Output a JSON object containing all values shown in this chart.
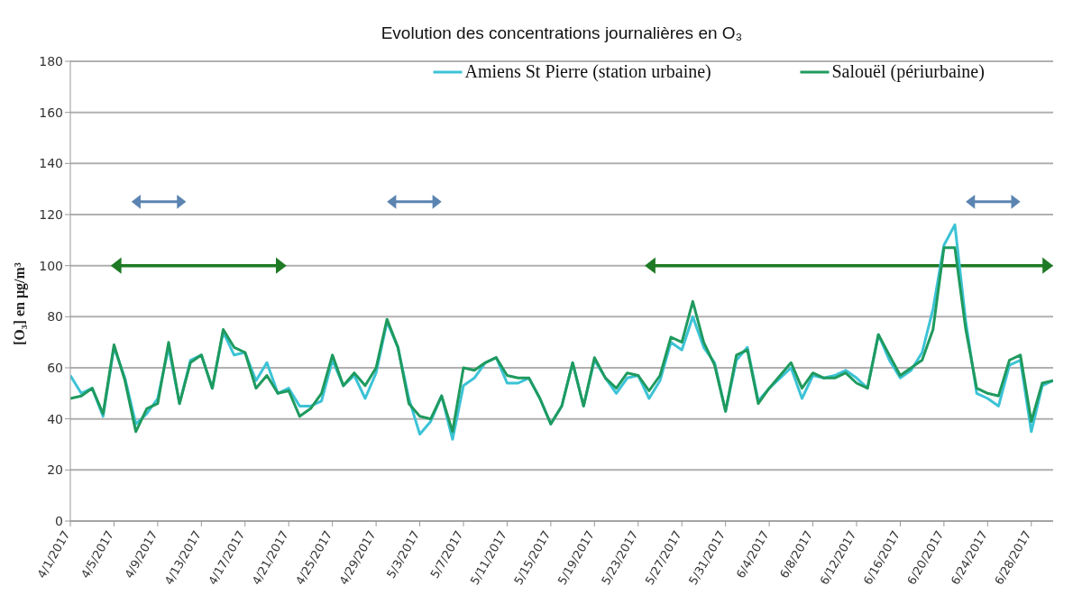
{
  "chart_data": {
    "type": "line",
    "title": "Evolution des concentrations journalières en O₃",
    "ylabel": "[O₃] en µg/m³",
    "x": [
      "2017-04-01",
      "2017-04-02",
      "2017-04-03",
      "2017-04-04",
      "2017-04-05",
      "2017-04-06",
      "2017-04-07",
      "2017-04-08",
      "2017-04-09",
      "2017-04-10",
      "2017-04-11",
      "2017-04-12",
      "2017-04-13",
      "2017-04-14",
      "2017-04-15",
      "2017-04-16",
      "2017-04-17",
      "2017-04-18",
      "2017-04-19",
      "2017-04-20",
      "2017-04-21",
      "2017-04-22",
      "2017-04-23",
      "2017-04-24",
      "2017-04-25",
      "2017-04-26",
      "2017-04-27",
      "2017-04-28",
      "2017-04-29",
      "2017-04-30",
      "2017-05-01",
      "2017-05-02",
      "2017-05-03",
      "2017-05-04",
      "2017-05-05",
      "2017-05-06",
      "2017-05-07",
      "2017-05-08",
      "2017-05-09",
      "2017-05-10",
      "2017-05-11",
      "2017-05-12",
      "2017-05-13",
      "2017-05-14",
      "2017-05-15",
      "2017-05-16",
      "2017-05-17",
      "2017-05-18",
      "2017-05-19",
      "2017-05-20",
      "2017-05-21",
      "2017-05-22",
      "2017-05-23",
      "2017-05-24",
      "2017-05-25",
      "2017-05-26",
      "2017-05-27",
      "2017-05-28",
      "2017-05-29",
      "2017-05-30",
      "2017-05-31",
      "2017-06-01",
      "2017-06-02",
      "2017-06-03",
      "2017-06-04",
      "2017-06-05",
      "2017-06-06",
      "2017-06-07",
      "2017-06-08",
      "2017-06-09",
      "2017-06-10",
      "2017-06-11",
      "2017-06-12",
      "2017-06-13",
      "2017-06-14",
      "2017-06-15",
      "2017-06-16",
      "2017-06-17",
      "2017-06-18",
      "2017-06-19",
      "2017-06-20",
      "2017-06-21",
      "2017-06-22",
      "2017-06-23",
      "2017-06-24",
      "2017-06-25",
      "2017-06-26",
      "2017-06-27",
      "2017-06-28",
      "2017-06-29",
      "2017-06-30"
    ],
    "series": [
      {
        "name": "Amiens St Pierre (station urbaine)",
        "color": "#3cc3d6",
        "values": [
          57,
          50,
          52,
          41,
          68,
          56,
          38,
          42,
          48,
          68,
          46,
          63,
          65,
          52,
          74,
          65,
          66,
          55,
          62,
          50,
          52,
          45,
          45,
          47,
          63,
          53,
          57,
          48,
          58,
          78,
          68,
          48,
          34,
          39,
          49,
          32,
          53,
          56,
          62,
          64,
          54,
          54,
          56,
          48,
          38,
          45,
          62,
          45,
          63,
          56,
          50,
          56,
          57,
          48,
          55,
          70,
          67,
          80,
          68,
          62,
          43,
          63,
          68,
          47,
          52,
          56,
          60,
          48,
          57,
          56,
          57,
          59,
          56,
          52,
          73,
          63,
          56,
          59,
          66,
          83,
          108,
          116,
          78,
          50,
          48,
          45,
          61,
          63,
          35,
          53,
          55
        ]
      },
      {
        "name": "Salouël (périurbaine)",
        "color": "#1f9a5e",
        "values": [
          48,
          49,
          52,
          42,
          69,
          55,
          35,
          44,
          46,
          70,
          46,
          62,
          65,
          52,
          75,
          68,
          66,
          52,
          57,
          50,
          51,
          41,
          44,
          50,
          65,
          53,
          58,
          53,
          60,
          79,
          68,
          46,
          41,
          40,
          49,
          35,
          60,
          59,
          62,
          64,
          57,
          56,
          56,
          48,
          38,
          45,
          62,
          45,
          64,
          56,
          52,
          58,
          57,
          51,
          57,
          72,
          70,
          86,
          70,
          61,
          43,
          65,
          67,
          46,
          52,
          57,
          62,
          52,
          58,
          56,
          56,
          58,
          54,
          52,
          73,
          65,
          57,
          60,
          63,
          75,
          107,
          107,
          75,
          52,
          50,
          49,
          63,
          65,
          39,
          54,
          55
        ]
      }
    ],
    "xlim": [
      "2017-04-01",
      "2017-06-30"
    ],
    "xticks": [
      {
        "value": "2017-04-01",
        "label": "4/1/2017"
      },
      {
        "value": "2017-04-05",
        "label": "4/5/2017"
      },
      {
        "value": "2017-04-09",
        "label": "4/9/2017"
      },
      {
        "value": "2017-04-13",
        "label": "4/13/2017"
      },
      {
        "value": "2017-04-17",
        "label": "4/17/2017"
      },
      {
        "value": "2017-04-21",
        "label": "4/21/2017"
      },
      {
        "value": "2017-04-25",
        "label": "4/25/2017"
      },
      {
        "value": "2017-04-29",
        "label": "4/29/2017"
      },
      {
        "value": "2017-05-03",
        "label": "5/3/2017"
      },
      {
        "value": "2017-05-07",
        "label": "5/7/2017"
      },
      {
        "value": "2017-05-11",
        "label": "5/11/2017"
      },
      {
        "value": "2017-05-15",
        "label": "5/15/2017"
      },
      {
        "value": "2017-05-19",
        "label": "5/19/2017"
      },
      {
        "value": "2017-05-23",
        "label": "5/23/2017"
      },
      {
        "value": "2017-05-27",
        "label": "5/27/2017"
      },
      {
        "value": "2017-05-31",
        "label": "5/31/2017"
      },
      {
        "value": "2017-06-04",
        "label": "6/4/2017"
      },
      {
        "value": "2017-06-08",
        "label": "6/8/2017"
      },
      {
        "value": "2017-06-12",
        "label": "6/12/2017"
      },
      {
        "value": "2017-06-16",
        "label": "6/16/2017"
      },
      {
        "value": "2017-06-20",
        "label": "6/20/2017"
      },
      {
        "value": "2017-06-24",
        "label": "6/24/2017"
      },
      {
        "value": "2017-06-28",
        "label": "6/28/2017"
      }
    ],
    "ylim": [
      0,
      180
    ],
    "yticks": [
      0,
      20,
      40,
      60,
      80,
      100,
      120,
      140,
      160,
      180
    ],
    "grid": "y",
    "legend": "top right",
    "marker": "none",
    "line_style": "solid"
  }
}
